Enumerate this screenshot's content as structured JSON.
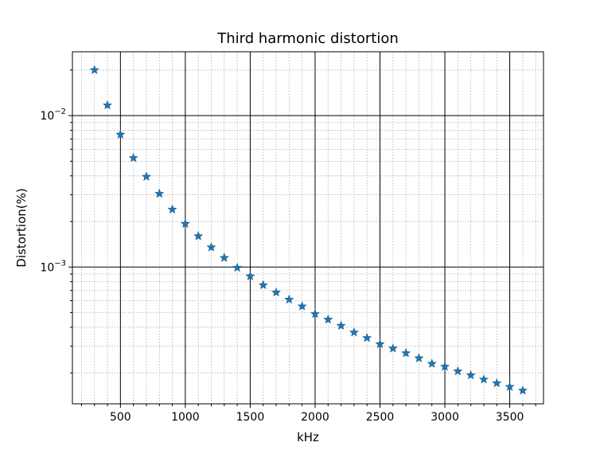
{
  "chart_data": {
    "type": "scatter",
    "title": "Third harmonic distortion",
    "xlabel": "kHz",
    "ylabel": "Distortion(%)",
    "xlim": [
      130,
      3760
    ],
    "ylim": [
      0.000125,
      0.0264
    ],
    "yscale": "log",
    "grid": {
      "major": true,
      "minor": true
    },
    "marker": "star",
    "color": "#1f77b4",
    "x_ticks": [
      500,
      1000,
      1500,
      2000,
      2500,
      3000,
      3500
    ],
    "x_tick_labels": [
      "500",
      "1000",
      "1500",
      "2000",
      "2500",
      "3000",
      "3500"
    ],
    "y_ticks": [
      0.001,
      0.01
    ],
    "y_tick_labels": [
      {
        "base": "10",
        "exp": "−3"
      },
      {
        "base": "10",
        "exp": "−2"
      }
    ],
    "x": [
      300,
      400,
      500,
      600,
      700,
      800,
      900,
      1000,
      1100,
      1200,
      1300,
      1400,
      1500,
      1600,
      1700,
      1800,
      1900,
      2000,
      2100,
      2200,
      2300,
      2400,
      2500,
      2600,
      2700,
      2800,
      2900,
      3000,
      3100,
      3200,
      3300,
      3400,
      3500,
      3600
    ],
    "y": [
      0.02,
      0.0117,
      0.0075,
      0.00525,
      0.00395,
      0.00305,
      0.0024,
      0.00193,
      0.0016,
      0.00135,
      0.00115,
      0.00099,
      0.00087,
      0.00076,
      0.00068,
      0.00061,
      0.00055,
      0.00049,
      0.00045,
      0.00041,
      0.00037,
      0.00034,
      0.00031,
      0.00029,
      0.00027,
      0.00025,
      0.00023,
      0.00022,
      0.000205,
      0.000193,
      0.000181,
      0.000171,
      0.000162,
      0.000153
    ]
  }
}
